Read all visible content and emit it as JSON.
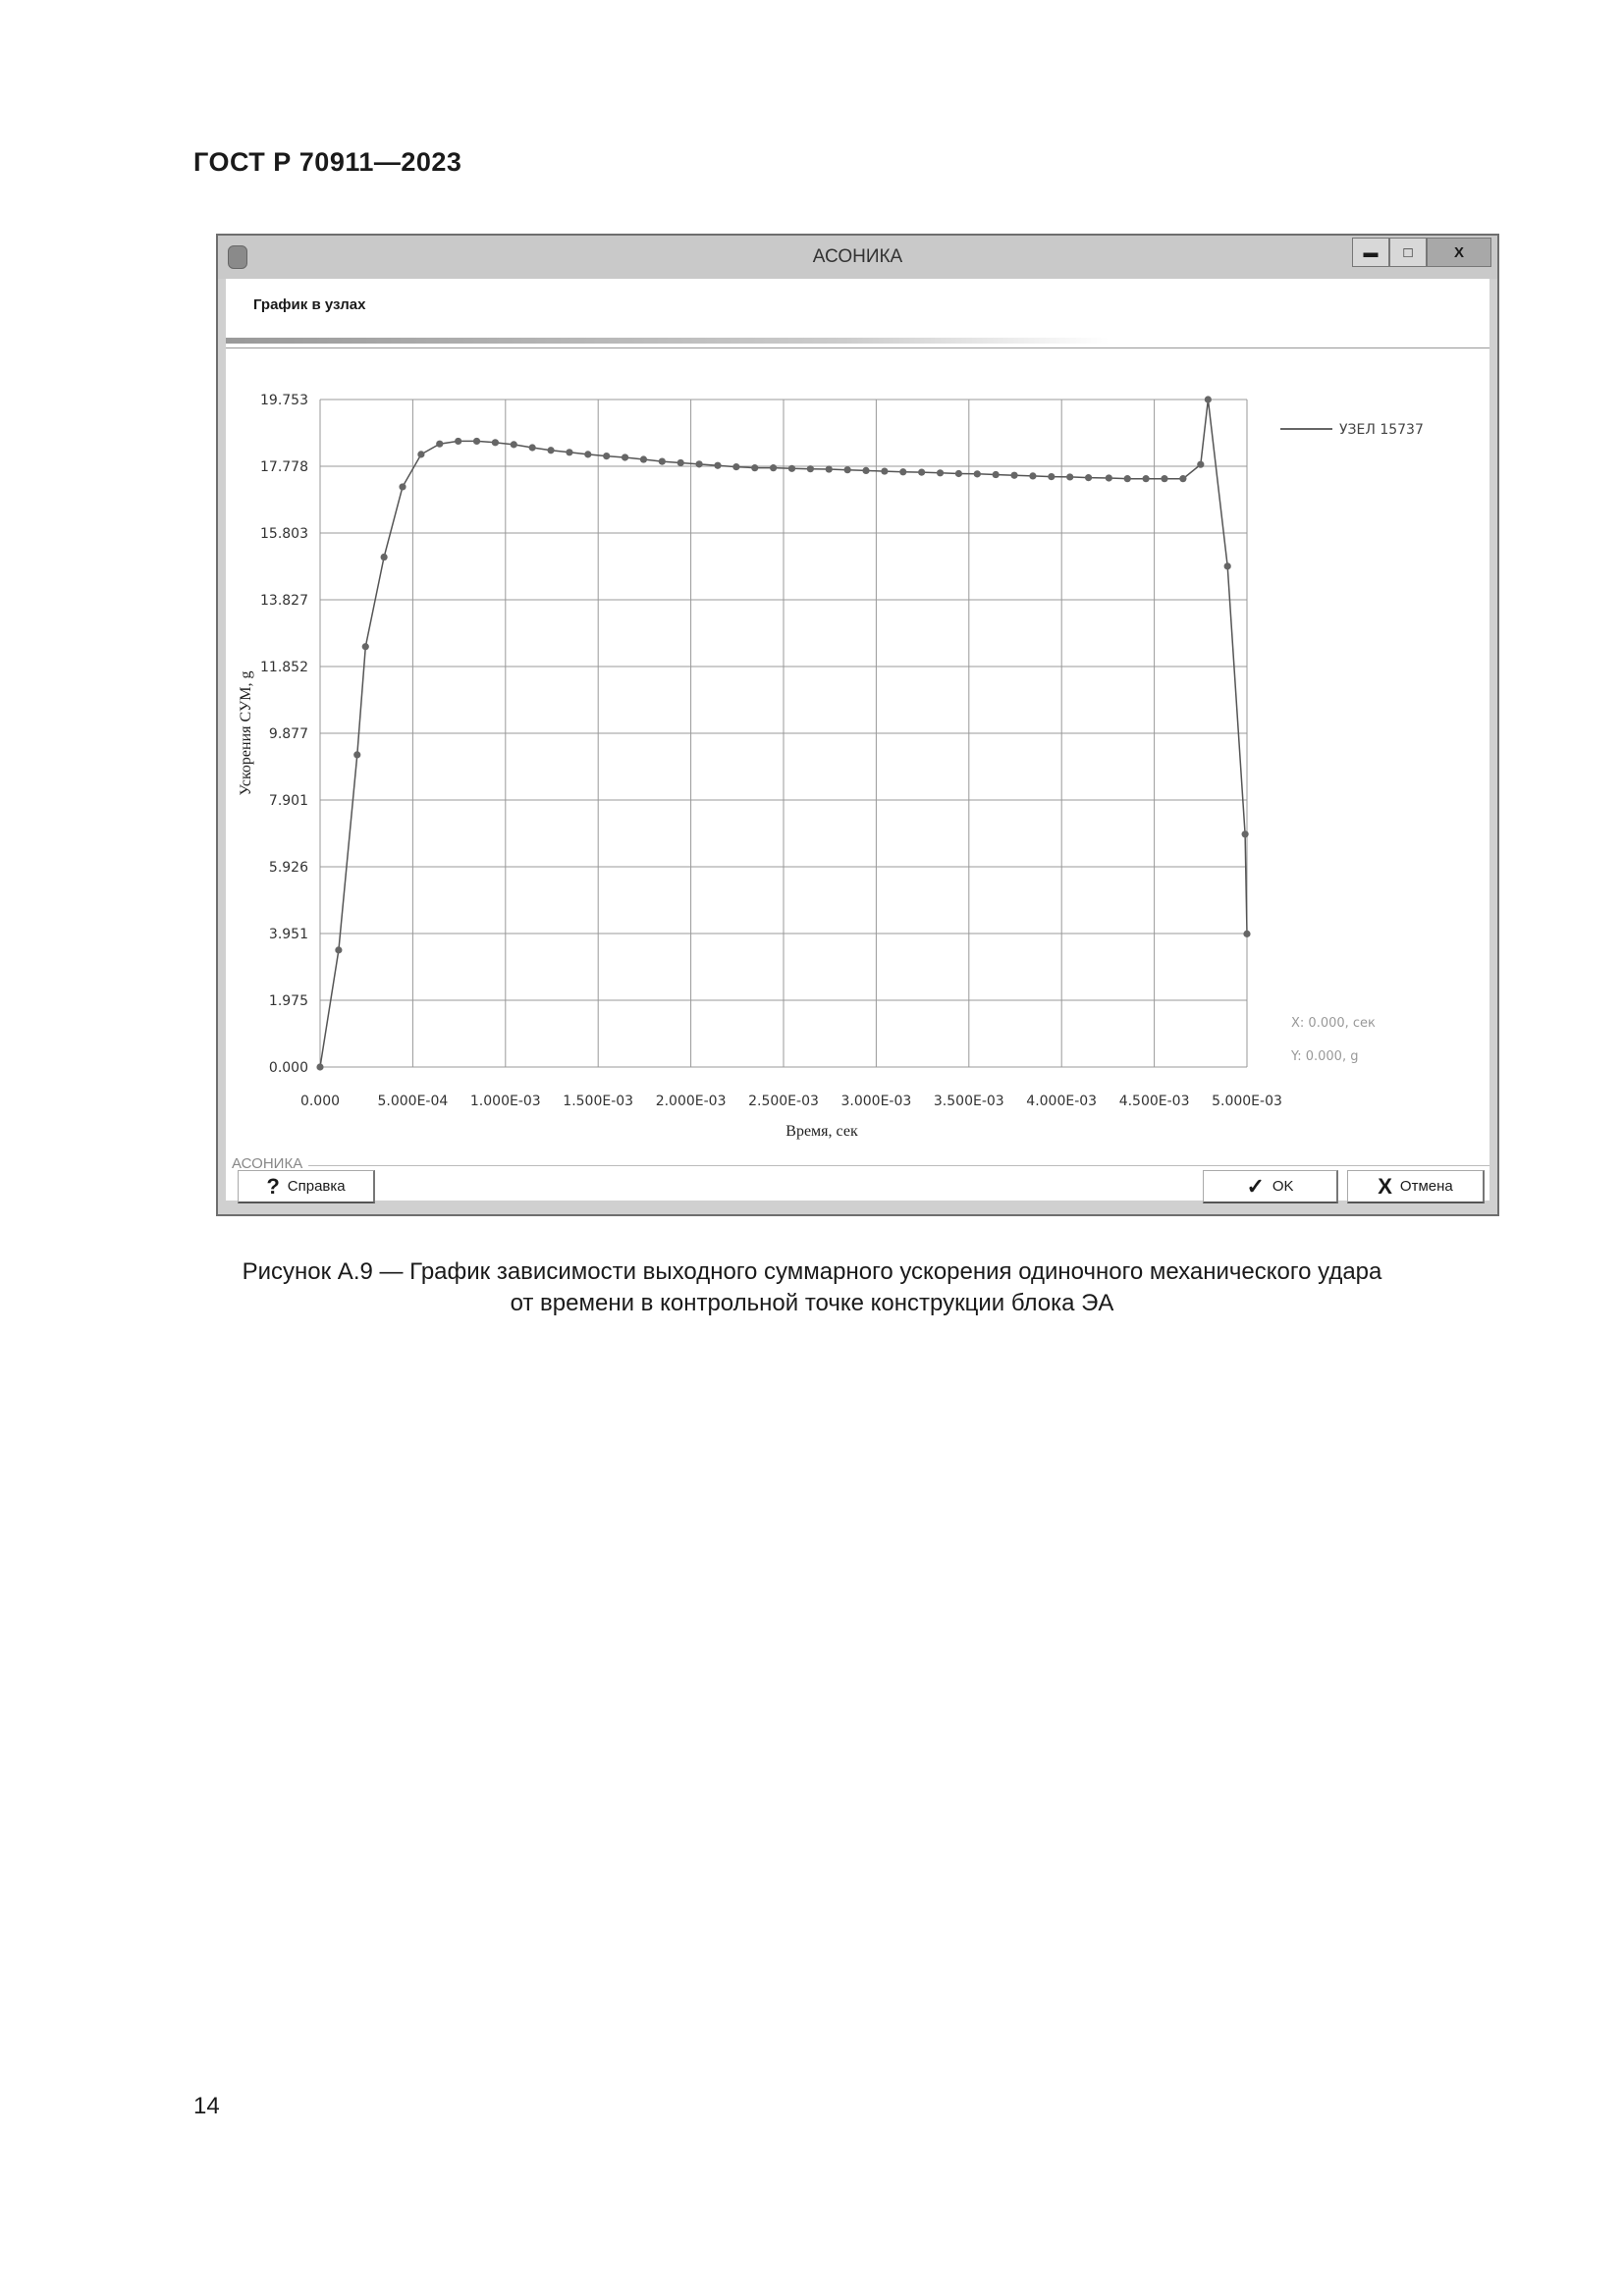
{
  "document": {
    "header": "ГОСТ Р 70911—2023",
    "caption_line1": "Рисунок А.9 — График зависимости выходного суммарного ускорения одиночного механического удара",
    "caption_line2": "от времени в контрольной точке конструкции блока ЭА",
    "page_number": "14"
  },
  "window": {
    "title": "АСОНИКА",
    "minimize": "▬",
    "maximize": "□",
    "close": "X",
    "section_title": "График в узлах",
    "group_label": "АСОНИКА",
    "readout_x": "X: 0.000, сек",
    "readout_y": "Y: 0.000, g",
    "buttons": {
      "help": {
        "icon": "?",
        "label": "Справка"
      },
      "ok": {
        "icon": "✓",
        "label": "OK"
      },
      "cancel": {
        "icon": "X",
        "label": "Отмена"
      }
    }
  },
  "chart_data": {
    "type": "line",
    "xlabel": "Время, сек",
    "ylabel": "Ускорения СУМ, g",
    "xlim": [
      0,
      0.005
    ],
    "ylim": [
      0,
      19.753
    ],
    "grid": true,
    "legend_position": "top-right",
    "line_color": "#555555",
    "x_ticks": [
      "0.000",
      "5.000E-04",
      "1.000E-03",
      "1.500E-03",
      "2.000E-03",
      "2.500E-03",
      "3.000E-03",
      "3.500E-03",
      "4.000E-03",
      "4.500E-03",
      "5.000E-03"
    ],
    "y_ticks": [
      "0.000",
      "1.975",
      "3.951",
      "5.926",
      "7.901",
      "9.877",
      "11.852",
      "13.827",
      "15.803",
      "17.778",
      "19.753"
    ],
    "series": [
      {
        "name": "УЗЕЛ 15737",
        "x": [
          0,
          0.0001,
          0.0002,
          0.000245,
          0.000345,
          0.000445,
          0.000545,
          0.000645,
          0.000745,
          0.000845,
          0.000945,
          0.001045,
          0.001145,
          0.001245,
          0.001345,
          0.001445,
          0.001545,
          0.001645,
          0.001745,
          0.001845,
          0.001945,
          0.002045,
          0.002145,
          0.002245,
          0.002345,
          0.002445,
          0.002545,
          0.002645,
          0.002745,
          0.002845,
          0.002945,
          0.003045,
          0.003145,
          0.003245,
          0.003345,
          0.003445,
          0.003545,
          0.003645,
          0.003745,
          0.003845,
          0.003945,
          0.004045,
          0.004145,
          0.004255,
          0.004355,
          0.004455,
          0.004555,
          0.004655,
          0.00475,
          0.00479,
          0.004895,
          0.00499,
          0.005
        ],
        "y": [
          0,
          3.46,
          9.24,
          12.44,
          15.09,
          17.17,
          18.13,
          18.44,
          18.52,
          18.52,
          18.48,
          18.42,
          18.33,
          18.25,
          18.19,
          18.13,
          18.08,
          18.04,
          17.98,
          17.92,
          17.88,
          17.84,
          17.8,
          17.76,
          17.73,
          17.73,
          17.71,
          17.7,
          17.69,
          17.67,
          17.65,
          17.63,
          17.61,
          17.6,
          17.58,
          17.56,
          17.55,
          17.53,
          17.51,
          17.49,
          17.47,
          17.46,
          17.44,
          17.43,
          17.41,
          17.41,
          17.41,
          17.41,
          17.83,
          19.753,
          14.82,
          6.89,
          3.94
        ]
      }
    ]
  }
}
